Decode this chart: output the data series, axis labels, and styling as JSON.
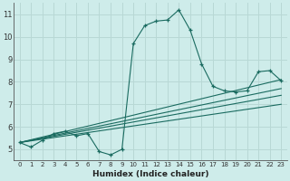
{
  "xlabel": "Humidex (Indice chaleur)",
  "background_color": "#ceecea",
  "grid_color": "#b8d8d5",
  "line_color": "#1a6b60",
  "series_main": {
    "x": [
      0,
      1,
      2,
      3,
      4,
      5,
      6,
      7,
      8,
      9,
      10,
      11,
      12,
      13,
      14,
      15,
      16,
      17,
      18,
      19,
      20,
      21,
      22,
      23
    ],
    "y": [
      5.3,
      5.1,
      5.4,
      5.7,
      5.8,
      5.6,
      5.7,
      4.9,
      4.75,
      5.0,
      9.7,
      10.5,
      10.7,
      10.75,
      11.2,
      10.3,
      8.8,
      7.8,
      7.6,
      7.55,
      7.6,
      8.45,
      8.5,
      8.05
    ]
  },
  "series_lines": [
    {
      "x": [
        0,
        23
      ],
      "y": [
        5.3,
        8.1
      ]
    },
    {
      "x": [
        0,
        23
      ],
      "y": [
        5.3,
        7.7
      ]
    },
    {
      "x": [
        0,
        23
      ],
      "y": [
        5.3,
        7.4
      ]
    },
    {
      "x": [
        0,
        23
      ],
      "y": [
        5.3,
        7.0
      ]
    }
  ],
  "xlim": [
    -0.5,
    23.5
  ],
  "ylim": [
    4.5,
    11.5
  ],
  "yticks": [
    5,
    6,
    7,
    8,
    9,
    10,
    11
  ],
  "xticks": [
    0,
    1,
    2,
    3,
    4,
    5,
    6,
    7,
    8,
    9,
    10,
    11,
    12,
    13,
    14,
    15,
    16,
    17,
    18,
    19,
    20,
    21,
    22,
    23
  ],
  "xlabel_fontsize": 6.5,
  "tick_fontsize_x": 5.0,
  "tick_fontsize_y": 6.0
}
